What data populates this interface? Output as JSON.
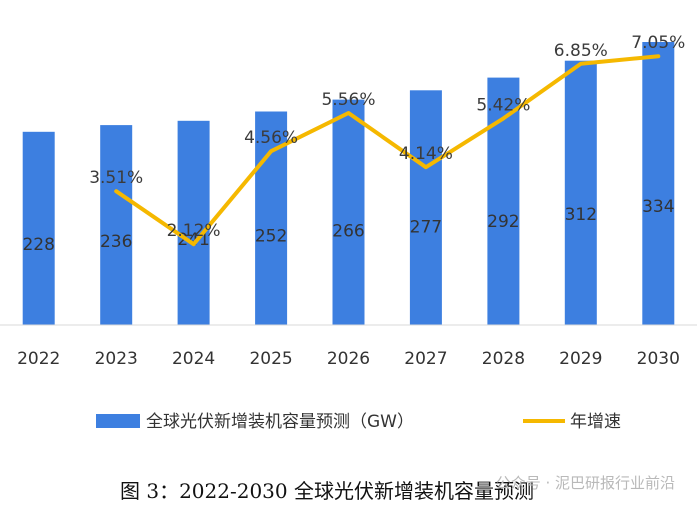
{
  "chart_data": {
    "type": "bar",
    "categories": [
      "2022",
      "2023",
      "2024",
      "2025",
      "2026",
      "2027",
      "2028",
      "2029",
      "2030"
    ],
    "series": [
      {
        "name": "全球光伏新增装机容量预测（GW）",
        "type": "bar",
        "values": [
          228,
          236,
          241,
          252,
          266,
          277,
          292,
          312,
          334
        ],
        "labels": [
          "228",
          "236",
          "241",
          "252",
          "266",
          "277",
          "292",
          "312",
          "334"
        ],
        "color": "#3d7fe0"
      },
      {
        "name": "年增速",
        "type": "line",
        "values": [
          null,
          3.51,
          2.12,
          4.56,
          5.56,
          4.14,
          5.42,
          6.85,
          7.05
        ],
        "labels": [
          "",
          "3.51%",
          "2.12%",
          "4.56%",
          "5.56%",
          "4.14%",
          "5.42%",
          "6.85%",
          "7.05%"
        ],
        "color": "#f5b800"
      }
    ],
    "y_axis_left_range": [
      0,
      360
    ],
    "y_axis_right_range": [
      0,
      8
    ],
    "grid": false,
    "legend_position": "bottom"
  },
  "caption": "图 3：2022-2030 全球光伏新增装机容量预测",
  "watermark": "公众号 · 泥巴研报行业前沿"
}
